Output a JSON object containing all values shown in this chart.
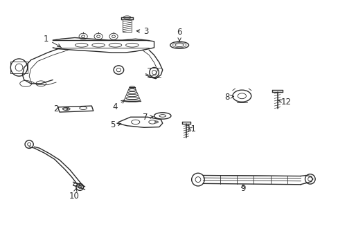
{
  "background_color": "#ffffff",
  "line_color": "#2a2a2a",
  "lw": 1.0,
  "tlw": 0.6,
  "figsize": [
    4.89,
    3.6
  ],
  "dpi": 100,
  "font_size": 8.5,
  "labels": {
    "1": [
      0.145,
      0.845,
      0.185,
      0.805
    ],
    "2": [
      0.175,
      0.565,
      0.21,
      0.568
    ],
    "3": [
      0.425,
      0.87,
      0.385,
      0.87
    ],
    "4": [
      0.355,
      0.56,
      0.375,
      0.598
    ],
    "5": [
      0.345,
      0.495,
      0.375,
      0.505
    ],
    "6": [
      0.53,
      0.87,
      0.53,
      0.83
    ],
    "7": [
      0.43,
      0.53,
      0.455,
      0.533
    ],
    "8": [
      0.68,
      0.61,
      0.7,
      0.615
    ],
    "9": [
      0.72,
      0.245,
      0.72,
      0.27
    ],
    "10": [
      0.22,
      0.215,
      0.22,
      0.245
    ],
    "11": [
      0.56,
      0.49,
      0.54,
      0.49
    ],
    "12": [
      0.84,
      0.59,
      0.82,
      0.595
    ]
  }
}
